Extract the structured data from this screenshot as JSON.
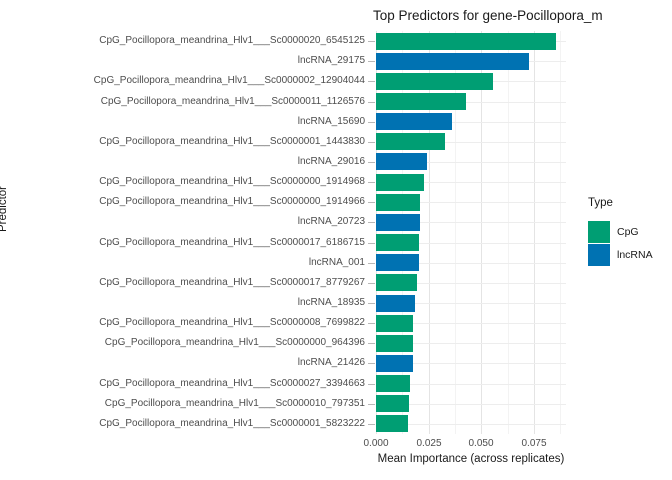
{
  "title": "Top Predictors for gene-Pocillopora_m",
  "axes": {
    "x_title": "Mean Importance (across replicates)",
    "y_title": "Predictor",
    "x_tick_labels": [
      "0.000",
      "0.025",
      "0.050",
      "0.075"
    ]
  },
  "legend": {
    "title": "Type",
    "items": [
      {
        "label": "CpG",
        "color": "#009E73"
      },
      {
        "label": "lncRNA",
        "color": "#0072B2"
      }
    ]
  },
  "chart_data": {
    "type": "bar",
    "orientation": "horizontal",
    "title": "Top Predictors for gene-Pocillopora_m",
    "xlabel": "Mean Importance (across replicates)",
    "ylabel": "Predictor",
    "xlim": [
      0,
      0.09
    ],
    "x_tick_values": [
      0,
      0.025,
      0.05,
      0.075
    ],
    "x_minor_tick_values": [
      0.0125,
      0.0375,
      0.0625,
      0.0875
    ],
    "grid": true,
    "legend_title": "Type",
    "legend_position": "right",
    "series_colors": {
      "CpG": "#009E73",
      "lncRNA": "#0072B2"
    },
    "bars": [
      {
        "predictor": "CpG_Pocillopora_meandrina_Hlv1___Sc0000020_6545125",
        "type": "CpG",
        "value": 0.0853
      },
      {
        "predictor": "lncRNA_29175",
        "type": "lncRNA",
        "value": 0.0726
      },
      {
        "predictor": "CpG_Pocillopora_meandrina_Hlv1___Sc0000002_12904044",
        "type": "CpG",
        "value": 0.0557
      },
      {
        "predictor": "CpG_Pocillopora_meandrina_Hlv1___Sc0000011_1126576",
        "type": "CpG",
        "value": 0.0427
      },
      {
        "predictor": "lncRNA_15690",
        "type": "lncRNA",
        "value": 0.0361
      },
      {
        "predictor": "CpG_Pocillopora_meandrina_Hlv1___Sc0000001_1443830",
        "type": "CpG",
        "value": 0.0326
      },
      {
        "predictor": "lncRNA_29016",
        "type": "lncRNA",
        "value": 0.0243
      },
      {
        "predictor": "CpG_Pocillopora_meandrina_Hlv1___Sc0000000_1914968",
        "type": "CpG",
        "value": 0.0226
      },
      {
        "predictor": "CpG_Pocillopora_meandrina_Hlv1___Sc0000000_1914966",
        "type": "CpG",
        "value": 0.0208
      },
      {
        "predictor": "lncRNA_20723",
        "type": "lncRNA",
        "value": 0.0207
      },
      {
        "predictor": "CpG_Pocillopora_meandrina_Hlv1___Sc0000017_6186715",
        "type": "CpG",
        "value": 0.0204
      },
      {
        "predictor": "lncRNA_001",
        "type": "lncRNA",
        "value": 0.0203
      },
      {
        "predictor": "CpG_Pocillopora_meandrina_Hlv1___Sc0000017_8779267",
        "type": "CpG",
        "value": 0.0195
      },
      {
        "predictor": "lncRNA_18935",
        "type": "lncRNA",
        "value": 0.0184
      },
      {
        "predictor": "CpG_Pocillopora_meandrina_Hlv1___Sc0000008_7699822",
        "type": "CpG",
        "value": 0.0177
      },
      {
        "predictor": "CpG_Pocillopora_meandrina_Hlv1___Sc0000000_964396",
        "type": "CpG",
        "value": 0.0176
      },
      {
        "predictor": "lncRNA_21426",
        "type": "lncRNA",
        "value": 0.0175
      },
      {
        "predictor": "CpG_Pocillopora_meandrina_Hlv1___Sc0000027_3394663",
        "type": "CpG",
        "value": 0.0161
      },
      {
        "predictor": "CpG_Pocillopora_meandrina_Hlv1___Sc0000010_797351",
        "type": "CpG",
        "value": 0.0157
      },
      {
        "predictor": "CpG_Pocillopora_meandrina_Hlv1___Sc0000001_5823222",
        "type": "CpG",
        "value": 0.0152
      }
    ]
  }
}
